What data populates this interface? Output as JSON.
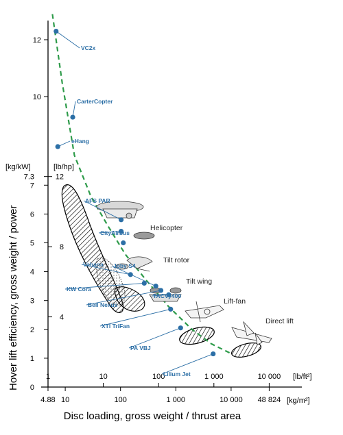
{
  "chart_data": {
    "type": "scatter",
    "x_axis_primary": {
      "label": "Disc loading, gross weight / thrust area",
      "unit": "[kg/m²]",
      "ticks": [
        "4.88",
        "10",
        "100",
        "1 000",
        "10 000",
        "48 824"
      ],
      "scale": "log"
    },
    "x_axis_secondary": {
      "unit": "[lb/ft²]",
      "ticks": [
        "1",
        "10",
        "100",
        "1 000",
        "10 000"
      ],
      "scale": "log"
    },
    "y_axis_primary": {
      "label": "Hover lift efficiency, gross weight / power",
      "unit": "[kg/kW]",
      "ticks": [
        "0",
        "1",
        "2",
        "3",
        "4",
        "5",
        "6",
        "7",
        "7.3"
      ],
      "range": [
        0,
        7.3
      ]
    },
    "y_axis_secondary": {
      "unit": "[lb/hp]",
      "ticks": [
        "4",
        "8",
        "12"
      ]
    },
    "y_axis_extended_ticks": [
      "10",
      "12"
    ],
    "aircraft": [
      {
        "name": "VC2x",
        "x": 1.4,
        "y": 12.3
      },
      {
        "name": "CarterCopter",
        "x": 2.8,
        "y": 9.3
      },
      {
        "name": "eHang",
        "x": 1.5,
        "y": 8.3
      },
      {
        "name": "AFS PAR",
        "x": 21,
        "y": 5.8
      },
      {
        "name": "CityAirbus",
        "x": 21,
        "y": 5.4
      },
      {
        "name": "",
        "x": 23,
        "y": 5.0
      },
      {
        "name": "Vahana",
        "x": 31,
        "y": 3.9
      },
      {
        "name": "Joby S4",
        "x": 89,
        "y": 3.5
      },
      {
        "name": "KW Cora",
        "x": 55,
        "y": 3.6
      },
      {
        "name": "Bell Nexus",
        "x": 110,
        "y": 3.35
      },
      {
        "name": "TACVy400",
        "x": 152,
        "y": 3.2
      },
      {
        "name": "XTI TriFan",
        "x": 165,
        "y": 2.7
      },
      {
        "name": "PA VBJ",
        "x": 250,
        "y": 2.05
      },
      {
        "name": "Lilium Jet",
        "x": 970,
        "y": 1.15
      }
    ],
    "categories": [
      "Helicopter",
      "Tilt rotor",
      "Tilt wing",
      "Lift-fan",
      "Direct lift"
    ],
    "trend_line": {
      "x": [
        1.2,
        1.8,
        3,
        6,
        12,
        25,
        60,
        150,
        400,
        900,
        2100
      ],
      "y": [
        12.9,
        10.5,
        8.0,
        6.6,
        5.6,
        4.6,
        3.7,
        2.8,
        2.0,
        1.5,
        1.15
      ]
    },
    "colors": {
      "points": "#2c6fa6",
      "labels": "#2c6fa6",
      "trend": "#2e9b4a",
      "axis": "#000000"
    }
  }
}
